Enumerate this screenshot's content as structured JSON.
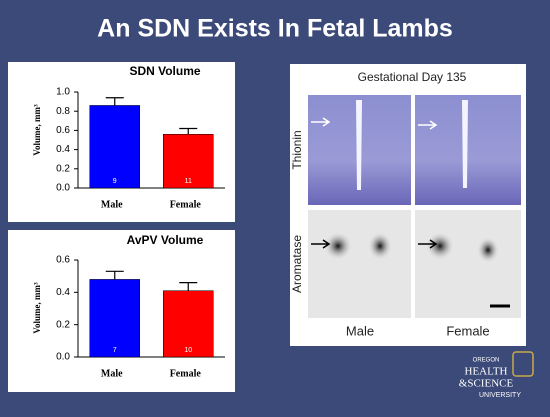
{
  "title": "An SDN Exists In Fetal Lambs",
  "chart_data": [
    {
      "type": "bar",
      "title": "SDN Volume",
      "ylabel": "Volume, mm³",
      "categories": [
        "Male",
        "Female"
      ],
      "values": [
        0.86,
        0.56
      ],
      "errors": [
        0.08,
        0.06
      ],
      "annotations": [
        "9",
        "11"
      ],
      "colors": [
        "#0000ff",
        "#ff0000"
      ],
      "ylim": [
        0,
        1
      ],
      "yticks": [
        {
          "value": 0,
          "label": "0.0"
        },
        0.2,
        0.4,
        0.6,
        0.8,
        {
          "value": 1,
          "label": "1.0"
        }
      ]
    },
    {
      "type": "bar",
      "title": "AvPV Volume",
      "ylabel": "Volume, mm³",
      "categories": [
        "Male",
        "Female"
      ],
      "values": [
        0.48,
        0.41
      ],
      "errors": [
        0.05,
        0.05
      ],
      "annotations": [
        "7",
        "10"
      ],
      "colors": [
        "#0000ff",
        "#ff0000"
      ],
      "ylim": [
        0,
        0.6
      ],
      "yticks": [
        {
          "value": 0,
          "label": "0.0"
        },
        0.2,
        0.4,
        0.6
      ]
    }
  ],
  "figure": {
    "title": "Gestational Day 135",
    "rows": [
      "Thionin",
      "Aromatase"
    ],
    "columns": [
      "Male",
      "Female"
    ]
  },
  "logo": [
    "OREGON",
    "HEALTH",
    "&SCIENCE",
    "UNIVERSITY"
  ]
}
